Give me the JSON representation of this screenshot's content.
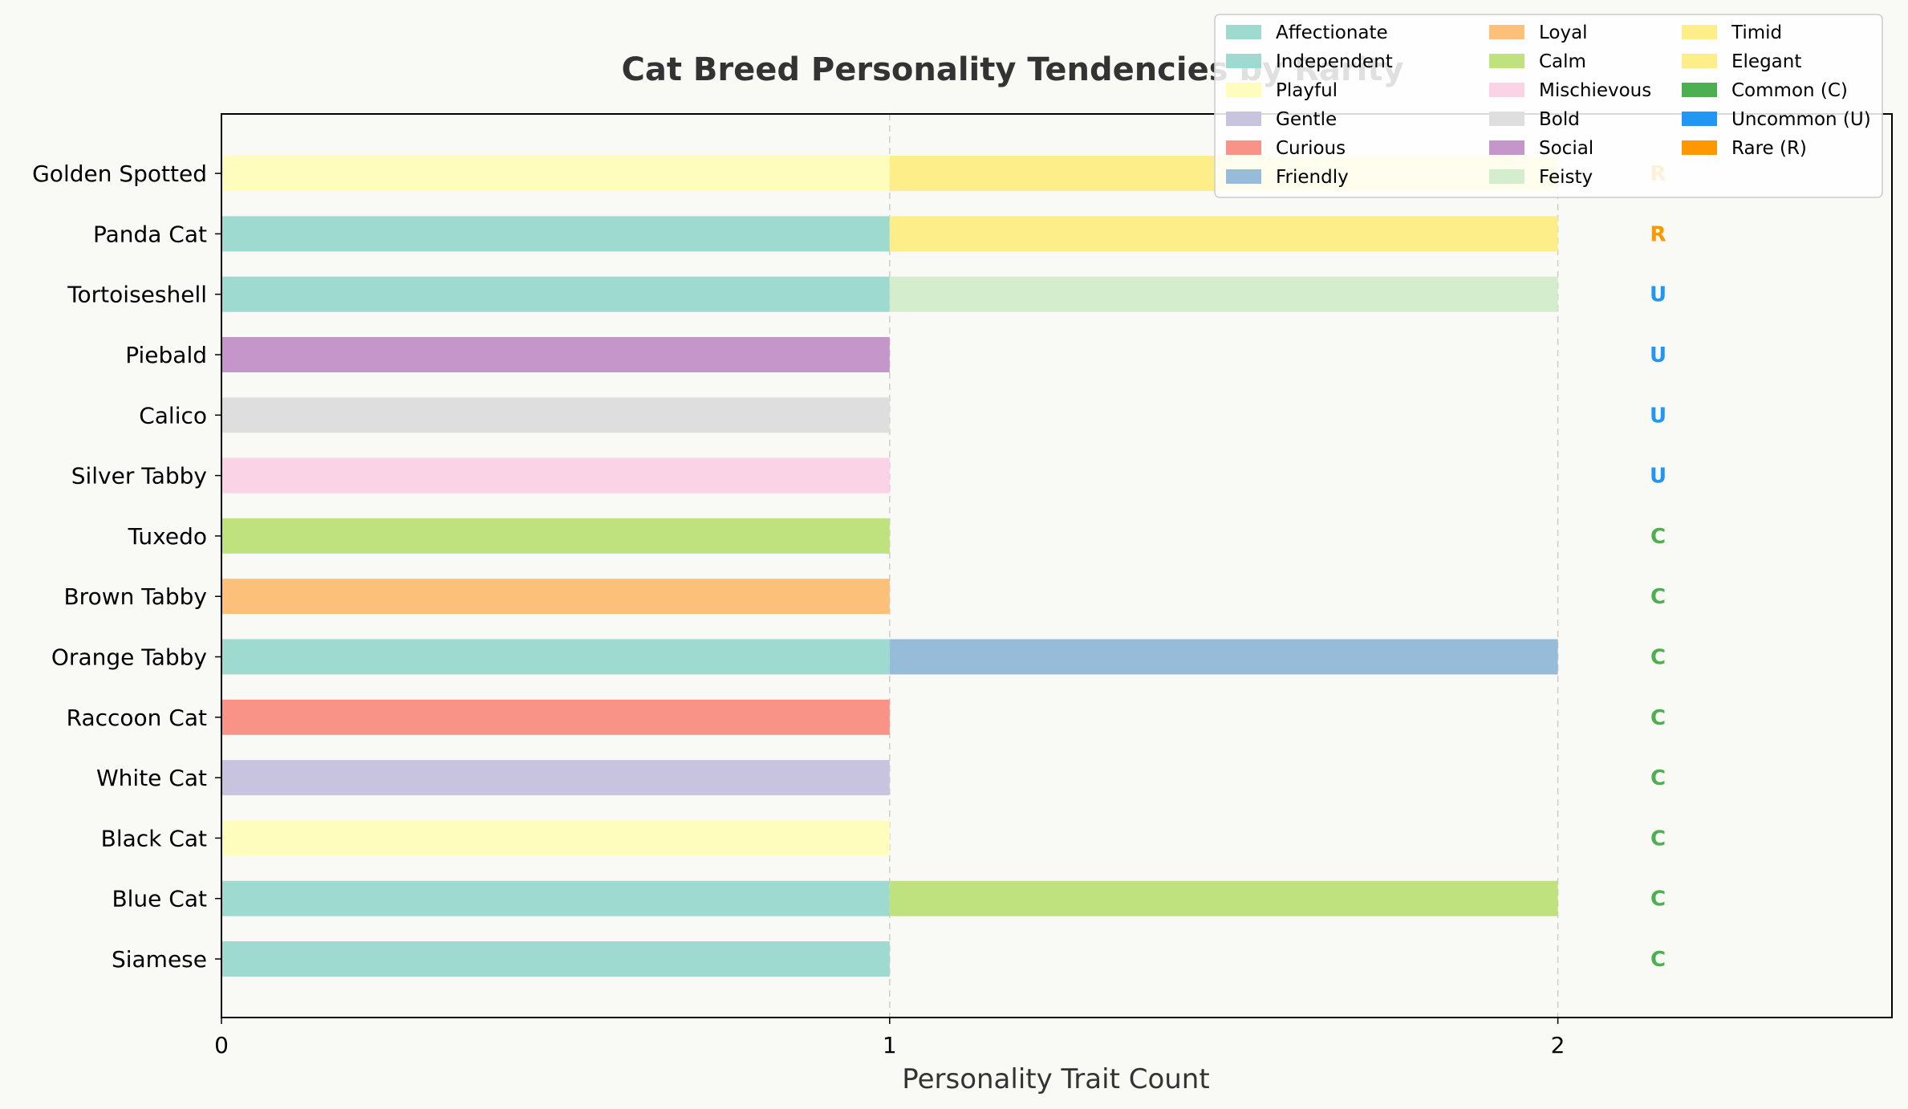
{
  "chart_data": {
    "type": "bar",
    "orientation": "horizontal",
    "stacked": true,
    "title": "Cat Breed Personality Tendencies by Rarity",
    "xlabel": "Personality Trait Count",
    "ylabel": "",
    "xlim": [
      0,
      2.5
    ],
    "xticks": [
      "0",
      "1",
      "2"
    ],
    "grid": "vertical dashed",
    "legend_position": "top-right",
    "categories": [
      "Siamese",
      "Blue Cat",
      "Black Cat",
      "White Cat",
      "Raccoon Cat",
      "Orange Tabby",
      "Brown Tabby",
      "Tuxedo",
      "Silver Tabby",
      "Calico",
      "Piebald",
      "Tortoiseshell",
      "Panda Cat",
      "Golden Spotted"
    ],
    "rarity": [
      "C",
      "C",
      "C",
      "C",
      "C",
      "C",
      "C",
      "C",
      "U",
      "U",
      "U",
      "U",
      "R",
      "R"
    ],
    "traits": [
      {
        "name": "Affectionate",
        "color": "#9fdad0"
      },
      {
        "name": "Independent",
        "color": "#9fdad0"
      },
      {
        "name": "Playful",
        "color": "#fefdbd"
      },
      {
        "name": "Gentle",
        "color": "#c8c4e0"
      },
      {
        "name": "Curious",
        "color": "#f99388"
      },
      {
        "name": "Friendly",
        "color": "#96bcd9"
      },
      {
        "name": "Loyal",
        "color": "#fcc07b"
      },
      {
        "name": "Calm",
        "color": "#c0e27e"
      },
      {
        "name": "Mischievous",
        "color": "#fad3e6"
      },
      {
        "name": "Bold",
        "color": "#dedede"
      },
      {
        "name": "Social",
        "color": "#c496c9"
      },
      {
        "name": "Feisty",
        "color": "#d4edcd"
      },
      {
        "name": "Timid",
        "color": "#feee8a"
      },
      {
        "name": "Elegant",
        "color": "#feee8a"
      }
    ],
    "breed_traits": [
      [
        "Affectionate"
      ],
      [
        "Independent",
        "Calm"
      ],
      [
        "Playful"
      ],
      [
        "Gentle"
      ],
      [
        "Curious"
      ],
      [
        "Affectionate",
        "Friendly"
      ],
      [
        "Loyal"
      ],
      [
        "Calm"
      ],
      [
        "Mischievous"
      ],
      [
        "Bold"
      ],
      [
        "Social"
      ],
      [
        "Independent",
        "Feisty"
      ],
      [
        "Independent",
        "Timid"
      ],
      [
        "Playful",
        "Elegant"
      ]
    ],
    "rarity_legend": [
      {
        "code": "C",
        "label": "Common (C)",
        "color": "#4caf50"
      },
      {
        "code": "U",
        "label": "Uncommon (U)",
        "color": "#2196f3"
      },
      {
        "code": "R",
        "label": "Rare (R)",
        "color": "#ff9800"
      }
    ]
  }
}
